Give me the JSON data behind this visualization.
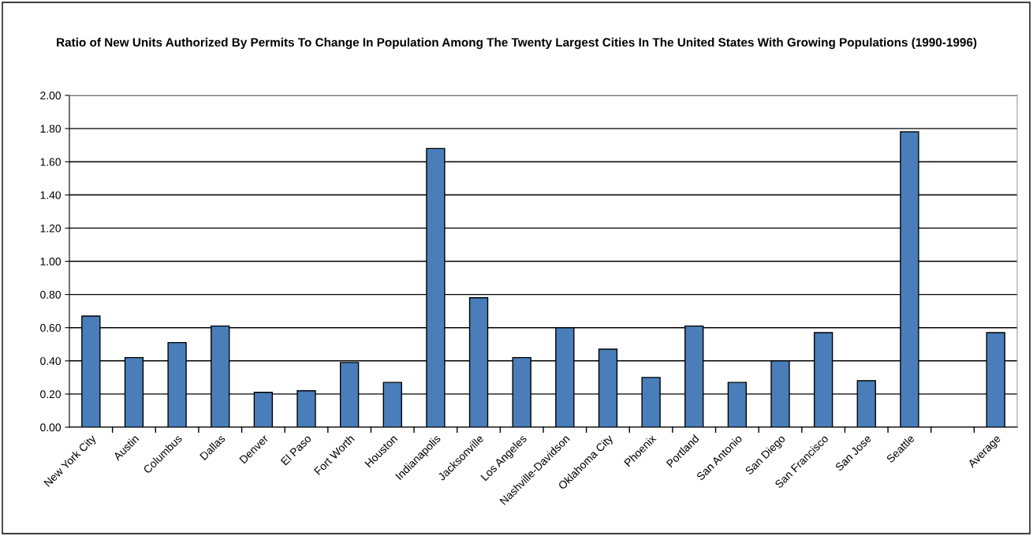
{
  "chart_data": {
    "type": "bar",
    "title": "Ratio of New Units Authorized By Permits To Change In Population Among The Twenty Largest Cities In The United States With Growing Populations (1990-1996)",
    "categories": [
      "New York City",
      "Austin",
      "Columbus",
      "Dallas",
      "Denver",
      "El Paso",
      "Fort Worth",
      "Houston",
      "Indianapolis",
      "Jacksonville",
      "Los Angeles",
      "Nashville-Davidson",
      "Oklahoma City",
      "Phoenix",
      "Portland",
      "San Antonio",
      "San Diego",
      "San Francisco",
      "San Jose",
      "Seattle",
      null,
      "Average"
    ],
    "values": [
      0.67,
      0.42,
      0.51,
      0.61,
      0.21,
      0.22,
      0.39,
      0.27,
      1.68,
      0.78,
      0.42,
      0.6,
      0.47,
      0.3,
      0.61,
      0.27,
      0.4,
      0.57,
      0.28,
      1.78,
      null,
      0.57
    ],
    "color": "#4a7ebb",
    "ylim": [
      0,
      2
    ],
    "yticks": [
      {
        "value": 0,
        "label": "0.00"
      },
      {
        "value": 0.2,
        "label": "0.20"
      },
      {
        "value": 0.4,
        "label": "0.40"
      },
      {
        "value": 0.6,
        "label": "0.60"
      },
      {
        "value": 0.8,
        "label": "0.80"
      },
      {
        "value": 1.0,
        "label": "1.00"
      },
      {
        "value": 1.2,
        "label": "1.20"
      },
      {
        "value": 1.4,
        "label": "1.40"
      },
      {
        "value": 1.6,
        "label": "1.60"
      },
      {
        "value": 1.8,
        "label": "1.80"
      },
      {
        "value": 2.0,
        "label": "2.00"
      }
    ],
    "grid": "y"
  }
}
